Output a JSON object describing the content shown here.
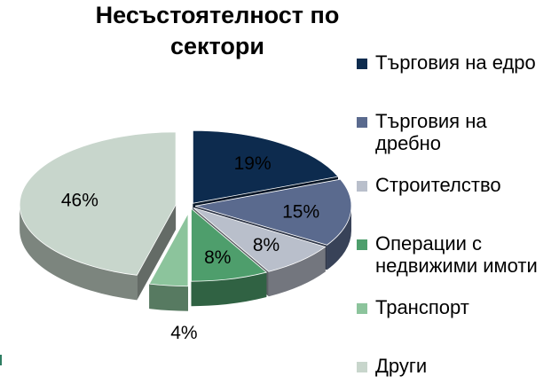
{
  "chart_data": {
    "type": "pie",
    "title": "Несъстоятелност по сектори",
    "labels": [
      "Търговия на едро",
      "Търговия на дребно",
      "Строителство",
      "Операции с недвижими имоти",
      "Транспорт",
      "Други"
    ],
    "values": [
      19,
      15,
      8,
      8,
      4,
      46
    ],
    "value_labels": [
      "19%",
      "15%",
      "8%",
      "8%",
      "4%",
      "46%"
    ],
    "colors": [
      "#0d2b4e",
      "#5a6a8e",
      "#b9bfcb",
      "#4e9e6c",
      "#8cc49c",
      "#c8d6cc"
    ],
    "exploded": [
      "Други",
      "Транспорт"
    ],
    "style": "3d",
    "legend": "right"
  },
  "legend": {
    "items": [
      {
        "label": "Търговия на едро",
        "color": "#0d2b4e"
      },
      {
        "label": "Търговия на дребно",
        "color": "#5a6a8e"
      },
      {
        "label": "Строителство",
        "color": "#b9bfcb"
      },
      {
        "label": "Операции с недвижими имоти",
        "color": "#4e9e6c"
      },
      {
        "label": "Транспорт",
        "color": "#8cc49c"
      },
      {
        "label": "Други",
        "color": "#c8d6cc"
      }
    ]
  }
}
